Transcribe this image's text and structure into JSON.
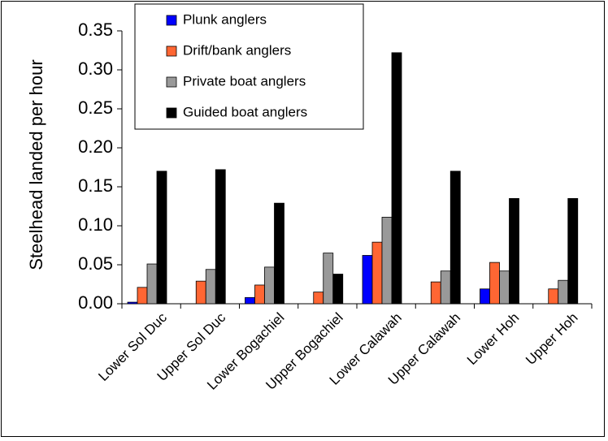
{
  "chart_data": {
    "type": "bar",
    "ylabel": "Steelhead landed per hour",
    "xlabel": "",
    "ylim": [
      0,
      0.35
    ],
    "yticks": [
      "0.00",
      "0.05",
      "0.10",
      "0.15",
      "0.20",
      "0.25",
      "0.30",
      "0.35"
    ],
    "categories": [
      "Lower Sol Duc",
      "Upper Sol Duc",
      "Lower Bogachiel",
      "Upper Bogachiel",
      "Lower Calawah",
      "Upper Calawah",
      "Lower Hoh",
      "Upper Hoh"
    ],
    "series": [
      {
        "name": "Plunk anglers",
        "color": "#0000ff",
        "values": [
          0.002,
          0,
          0.008,
          0,
          0.062,
          0,
          0.019,
          0
        ]
      },
      {
        "name": "Drift/bank anglers",
        "color": "#ff6633",
        "values": [
          0.021,
          0.029,
          0.024,
          0.015,
          0.079,
          0.028,
          0.053,
          0.019
        ]
      },
      {
        "name": "Private boat anglers",
        "color": "#999999",
        "values": [
          0.051,
          0.044,
          0.047,
          0.065,
          0.111,
          0.042,
          0.042,
          0.03
        ]
      },
      {
        "name": "Guided boat anglers",
        "color": "#000000",
        "values": [
          0.17,
          0.172,
          0.129,
          0.038,
          0.322,
          0.17,
          0.135,
          0.135
        ]
      }
    ],
    "legend_position": "top-center",
    "grid": false
  }
}
